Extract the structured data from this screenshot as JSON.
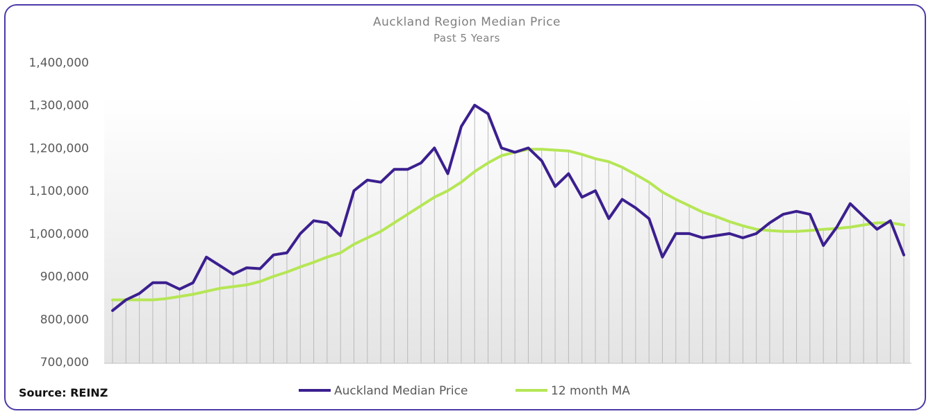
{
  "chart_data": {
    "type": "line",
    "title": "Auckland Region Median Price",
    "subtitle": "Past 5 Years",
    "source": "Source: REINZ",
    "ylim": [
      700000,
      1400000
    ],
    "yticks": [
      "700,000",
      "800,000",
      "900,000",
      "1,000,000",
      "1,100,000",
      "1,200,000",
      "1,300,000",
      "1,400,000"
    ],
    "ytick_values": [
      700000,
      800000,
      900000,
      1000000,
      1100000,
      1200000,
      1300000,
      1400000
    ],
    "legend_position": "bottom",
    "grid": "vertical drop lines per month",
    "series": [
      {
        "name": "Auckland Median Price",
        "color": "#3b1f8f",
        "values": [
          820000,
          845000,
          860000,
          885000,
          885000,
          870000,
          885000,
          945000,
          925000,
          905000,
          920000,
          918000,
          950000,
          955000,
          1000000,
          1030000,
          1025000,
          995000,
          1100000,
          1125000,
          1120000,
          1150000,
          1150000,
          1165000,
          1200000,
          1140000,
          1250000,
          1300000,
          1280000,
          1200000,
          1190000,
          1200000,
          1170000,
          1110000,
          1140000,
          1085000,
          1100000,
          1035000,
          1080000,
          1060000,
          1035000,
          945000,
          1000000,
          1000000,
          990000,
          995000,
          1000000,
          990000,
          1000000,
          1025000,
          1045000,
          1052000,
          1045000,
          972000,
          1015000,
          1070000,
          1040000,
          1010000,
          1030000,
          950000
        ]
      },
      {
        "name": "12 month MA",
        "color": "#b5e655",
        "values": [
          845000,
          845000,
          845000,
          845000,
          848000,
          853000,
          858000,
          865000,
          872000,
          876000,
          880000,
          888000,
          900000,
          910000,
          922000,
          933000,
          945000,
          955000,
          975000,
          990000,
          1005000,
          1025000,
          1045000,
          1065000,
          1085000,
          1100000,
          1120000,
          1145000,
          1165000,
          1182000,
          1190000,
          1197000,
          1197000,
          1195000,
          1193000,
          1185000,
          1175000,
          1168000,
          1155000,
          1138000,
          1120000,
          1097000,
          1080000,
          1065000,
          1050000,
          1040000,
          1028000,
          1018000,
          1010000,
          1007000,
          1005000,
          1005000,
          1007000,
          1010000,
          1012000,
          1015000,
          1020000,
          1025000,
          1025000,
          1020000
        ]
      }
    ]
  },
  "colors": {
    "frame_border": "#4a3aa8",
    "plot_gradient_top": "#ffffff",
    "plot_gradient_bottom": "#e4e4e4",
    "drop_line": "#b9b9b9"
  }
}
